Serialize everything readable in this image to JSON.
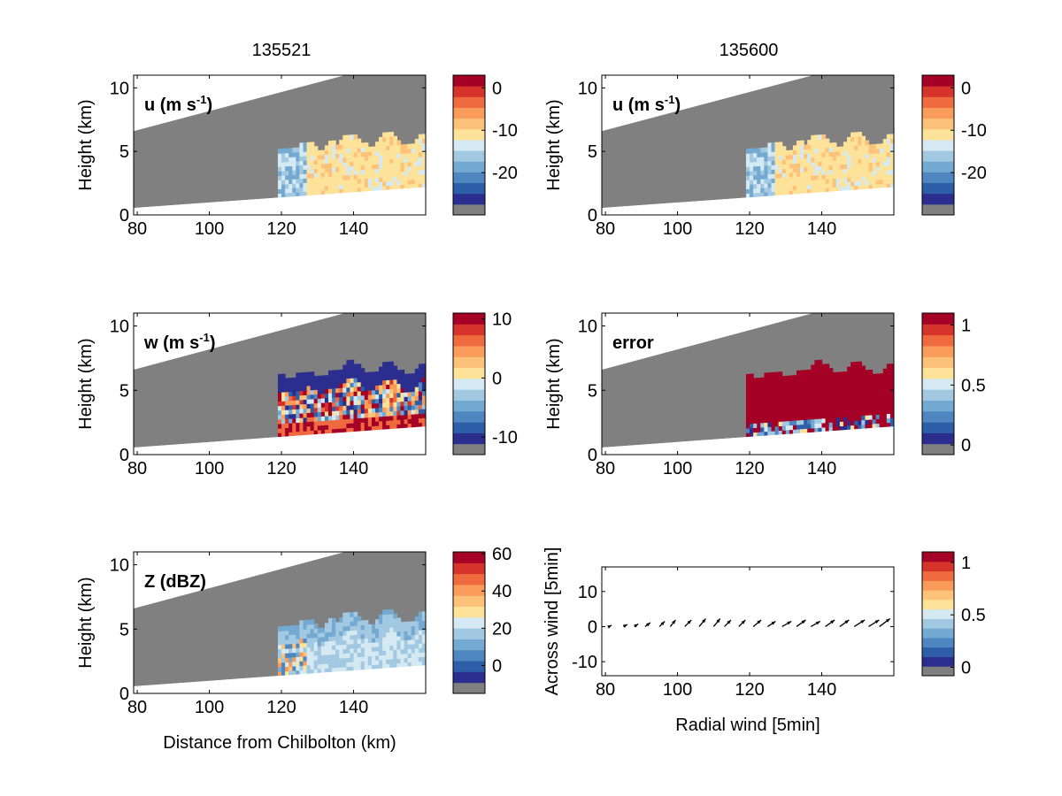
{
  "figure": {
    "col_titles": [
      "135521",
      "135600"
    ]
  },
  "colors": {
    "palette": [
      "#2b2e8f",
      "#2f5ea8",
      "#4e86bf",
      "#74a9d1",
      "#a3c9e2",
      "#d4e9f2",
      "#fde39a",
      "#fdc27a",
      "#f99b59",
      "#ef6a3f",
      "#d6342a",
      "#a50026"
    ],
    "mask_gray": "#808080",
    "background": "#ffffff"
  },
  "chart_data": [
    {
      "id": "u-135521",
      "type": "heatmap",
      "label": "u (m s",
      "label_sup": "-1",
      "label_suffix": ")",
      "ylabel": "Height (km)",
      "xlabel": "",
      "xlim": [
        79,
        160
      ],
      "ylim": [
        0,
        11
      ],
      "xticks": [
        "80",
        "100",
        "120",
        "140"
      ],
      "yticks": [
        "0",
        "5",
        "10"
      ],
      "colorbar": {
        "ticks": [
          "0",
          "-10",
          "-20"
        ],
        "tick_values": [
          0,
          -10,
          -20
        ],
        "range": [
          -30,
          3
        ]
      }
    },
    {
      "id": "u-135600",
      "type": "heatmap",
      "label": "u (m s",
      "label_sup": "-1",
      "label_suffix": ")",
      "ylabel": "Height (km)",
      "xlabel": "",
      "xlim": [
        79,
        160
      ],
      "ylim": [
        0,
        11
      ],
      "xticks": [
        "80",
        "100",
        "120",
        "140"
      ],
      "yticks": [
        "0",
        "5",
        "10"
      ],
      "colorbar": {
        "ticks": [
          "0",
          "-10",
          "-20"
        ],
        "tick_values": [
          0,
          -10,
          -20
        ],
        "range": [
          -30,
          3
        ]
      }
    },
    {
      "id": "w-135521",
      "type": "heatmap",
      "label": "w (m s",
      "label_sup": "-1",
      "label_suffix": ")",
      "ylabel": "Height (km)",
      "xlabel": "",
      "xlim": [
        79,
        160
      ],
      "ylim": [
        0,
        11
      ],
      "xticks": [
        "80",
        "100",
        "120",
        "140"
      ],
      "yticks": [
        "0",
        "5",
        "10"
      ],
      "colorbar": {
        "ticks": [
          "10",
          "0",
          "-10"
        ],
        "tick_values": [
          10,
          0,
          -10
        ],
        "range": [
          -13,
          11
        ]
      }
    },
    {
      "id": "error-135600",
      "type": "heatmap",
      "label": "error",
      "label_sup": "",
      "label_suffix": "",
      "ylabel": "Height (km)",
      "xlabel": "",
      "xlim": [
        79,
        160
      ],
      "ylim": [
        0,
        11
      ],
      "xticks": [
        "80",
        "100",
        "120",
        "140"
      ],
      "yticks": [
        "0",
        "5",
        "10"
      ],
      "colorbar": {
        "ticks": [
          "1",
          "0.5",
          "0"
        ],
        "tick_values": [
          1,
          0.5,
          0
        ],
        "range": [
          -0.08,
          1.1
        ]
      }
    },
    {
      "id": "Z-135521",
      "type": "heatmap",
      "label": "Z (dBZ)",
      "label_sup": "",
      "label_suffix": "",
      "ylabel": "Height (km)",
      "xlabel": "Distance from Chilbolton (km)",
      "xlim": [
        79,
        160
      ],
      "ylim": [
        0,
        11
      ],
      "xticks": [
        "80",
        "100",
        "120",
        "140"
      ],
      "yticks": [
        "0",
        "5",
        "10"
      ],
      "colorbar": {
        "ticks": [
          "60",
          "40",
          "20",
          "0"
        ],
        "tick_values": [
          60,
          40,
          20,
          0
        ],
        "range": [
          -15,
          61
        ]
      }
    },
    {
      "id": "wind-vectors",
      "type": "scatter",
      "label": "",
      "label_sup": "",
      "label_suffix": "",
      "ylabel": "Across wind [5min]",
      "xlabel": "Radial wind [5min]",
      "xlim": [
        79,
        160
      ],
      "ylim": [
        -14,
        17
      ],
      "xticks": [
        "80",
        "100",
        "120",
        "140"
      ],
      "yticks": [
        "-10",
        "0",
        "10"
      ],
      "colorbar": {
        "ticks": [
          "1",
          "0.5",
          "0"
        ],
        "tick_values": [
          1,
          0.5,
          0
        ],
        "range": [
          -0.08,
          1.1
        ]
      },
      "vectors": [
        {
          "x": 81,
          "u": 1.0,
          "v": 0.5
        },
        {
          "x": 85,
          "u": 1.5,
          "v": 0.8
        },
        {
          "x": 88,
          "u": 1.5,
          "v": 1.0
        },
        {
          "x": 91,
          "u": 2.0,
          "v": 1.5
        },
        {
          "x": 95,
          "u": 2.0,
          "v": 2.0
        },
        {
          "x": 98,
          "u": 2.0,
          "v": 2.5
        },
        {
          "x": 102,
          "u": 2.5,
          "v": 2.5
        },
        {
          "x": 106,
          "u": 2.5,
          "v": 3.0
        },
        {
          "x": 110,
          "u": 2.5,
          "v": 3.0
        },
        {
          "x": 113,
          "u": 2.5,
          "v": 2.5
        },
        {
          "x": 117,
          "u": 2.5,
          "v": 2.5
        },
        {
          "x": 121,
          "u": 3.0,
          "v": 2.5
        },
        {
          "x": 125,
          "u": 3.0,
          "v": 2.0
        },
        {
          "x": 129,
          "u": 3.5,
          "v": 2.0
        },
        {
          "x": 133,
          "u": 3.5,
          "v": 2.5
        },
        {
          "x": 137,
          "u": 3.5,
          "v": 2.0
        },
        {
          "x": 141,
          "u": 3.5,
          "v": 2.5
        },
        {
          "x": 145,
          "u": 3.5,
          "v": 2.5
        },
        {
          "x": 149,
          "u": 4.0,
          "v": 2.5
        },
        {
          "x": 153,
          "u": 4.0,
          "v": 2.5
        },
        {
          "x": 156,
          "u": 4.0,
          "v": 3.0
        }
      ]
    }
  ]
}
